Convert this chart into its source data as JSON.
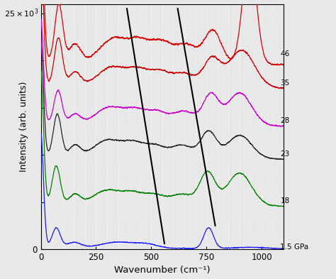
{
  "xlabel": "Wavenumber (cm⁻¹)",
  "ylabel": "Intensity (arb. units)",
  "xlim": [
    0,
    1100
  ],
  "ylim": [
    0,
    26000
  ],
  "pressures": [
    "1.5 GPa",
    "18",
    "23",
    "28",
    "35",
    "46"
  ],
  "colors": [
    "#1a1aff",
    "#008000",
    "#222222",
    "#cc00cc",
    "#cc0000",
    "#dd0000"
  ],
  "offsets": [
    0,
    4500,
    9500,
    13000,
    17000,
    19500
  ],
  "background_color": "#e8e8e8",
  "grid_color": "#ffffff",
  "diag_line1": {
    "x": [
      390,
      560
    ],
    "y": [
      25500,
      600
    ]
  },
  "diag_line2": {
    "x": [
      620,
      790
    ],
    "y": [
      25500,
      2500
    ]
  },
  "label_offsets_y": [
    200,
    600,
    600,
    600,
    600,
    1200
  ],
  "ytop_label": "25×10³"
}
